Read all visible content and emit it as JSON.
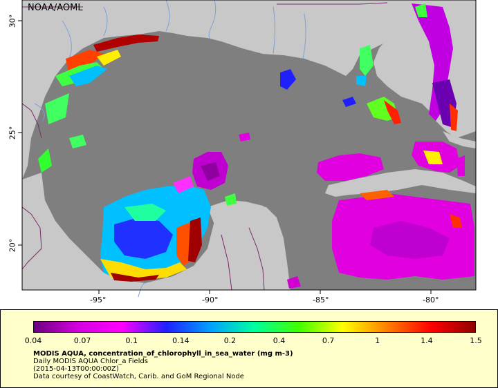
{
  "credit": "NOAA/AOML",
  "map": {
    "x_ticks": [
      "-95°",
      "-90°",
      "-85°",
      "-80°"
    ],
    "y_ticks": [
      "30°",
      "25°",
      "20°"
    ]
  },
  "colors": {
    "ocean_nodata": "#7f7f7f",
    "land": "#c8c8c8",
    "rivers": "#7fa0d6",
    "borders": "#7a2a6a",
    "legend_bg": "#ffffcc"
  },
  "legend": {
    "scale": [
      "0.04",
      "0.07",
      "0.1",
      "0.14",
      "0.2",
      "0.4",
      "0.7",
      "1",
      "1.4",
      "1.5"
    ],
    "colormap": [
      "#6a0080",
      "#d400e0",
      "#ff00ff",
      "#2020ff",
      "#00a0ff",
      "#00ffa0",
      "#40ff00",
      "#ffff00",
      "#ff8000",
      "#ff0000",
      "#900000"
    ],
    "title": "MODIS AQUA, concentration_of_chlorophyll_in_sea_water (mg m-3)",
    "line2": "Daily MODIS AQUA Chlor_a Fields",
    "line3": "(2015-04-13T00:00:00Z)",
    "line4": "Data courtesy of CoastWatch, Carib. and GoM Regional Node"
  }
}
